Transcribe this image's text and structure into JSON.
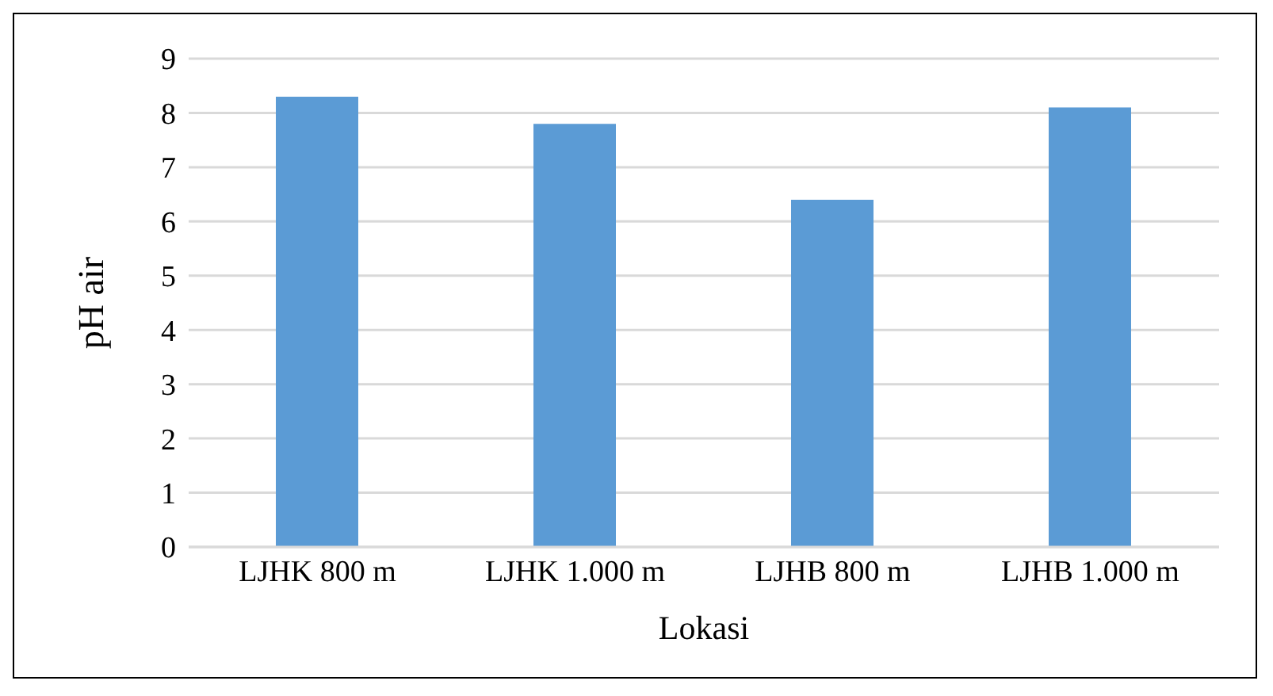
{
  "chart_data": {
    "type": "bar",
    "xlabel": "Lokasi",
    "ylabel": "pH air",
    "categories": [
      "LJHK 800 m",
      "LJHK 1.000 m",
      "LJHB 800 m",
      "LJHB 1.000 m"
    ],
    "values": [
      8.3,
      7.8,
      6.4,
      8.1
    ],
    "color": "#5b9bd5",
    "ylim": [
      0,
      9
    ],
    "yticks": [
      0,
      1,
      2,
      3,
      4,
      5,
      6,
      7,
      8,
      9
    ],
    "grid": "y"
  }
}
